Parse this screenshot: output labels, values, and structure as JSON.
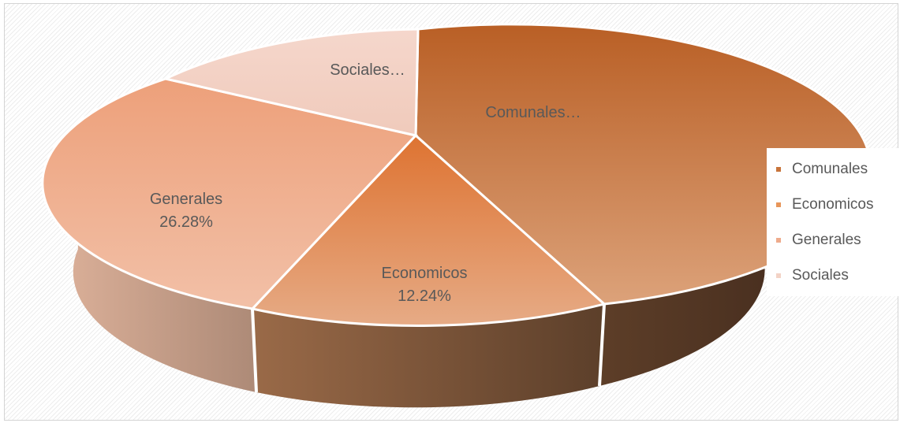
{
  "chart_data": {
    "type": "pie",
    "style": "3d",
    "title": "",
    "categories": [
      "Comunales",
      "Economicos",
      "Generales",
      "Sociales"
    ],
    "values": [
      46.02,
      12.24,
      26.28,
      15.46
    ],
    "unit": "%",
    "data_labels": [
      {
        "category": "Comunales",
        "text": "Comunales…"
      },
      {
        "category": "Economicos",
        "text": "Economicos",
        "value_text": "12.24%"
      },
      {
        "category": "Generales",
        "text": "Generales",
        "value_text": "26.28%"
      },
      {
        "category": "Sociales",
        "text": "Sociales…"
      }
    ],
    "colors": [
      "#c8743b",
      "#e8965a",
      "#eeab8c",
      "#f3d3c6"
    ],
    "side_colors": [
      "#5a3a22",
      "#7a5436",
      "#b8907a",
      "#c9a899"
    ],
    "legend": {
      "position": "right",
      "entries": [
        "Comunales",
        "Economicos",
        "Generales",
        "Sociales"
      ]
    }
  }
}
